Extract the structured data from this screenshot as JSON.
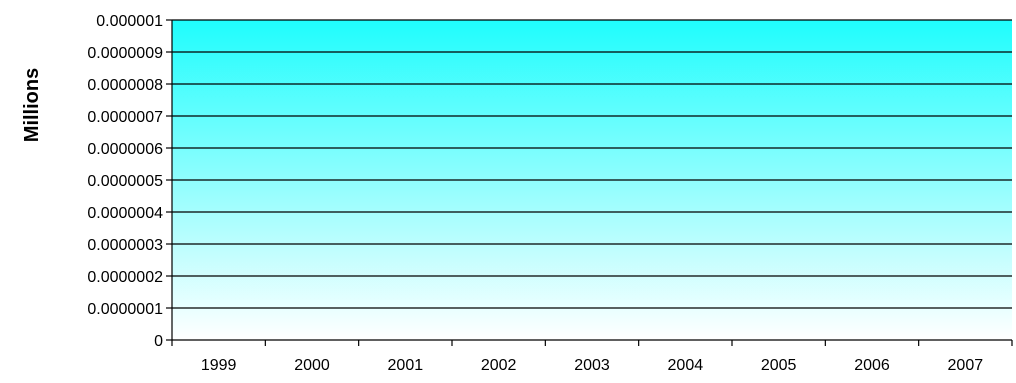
{
  "chart_data": {
    "type": "bar",
    "categories": [
      "1999",
      "2000",
      "2001",
      "2002",
      "2003",
      "2004",
      "2005",
      "2006",
      "2007"
    ],
    "series": [
      {
        "values": [
          0,
          0,
          0,
          0,
          0,
          0,
          0,
          0,
          0
        ]
      }
    ],
    "xlabel": "",
    "ylabel": "Millions",
    "ylim": [
      0,
      1e-06
    ],
    "yticks": [
      "0",
      "0.0000001",
      "0.0000002",
      "0.0000003",
      "0.0000004",
      "0.0000005",
      "0.0000006",
      "0.0000007",
      "0.0000008",
      "0.0000009",
      "0.000001"
    ],
    "grid": true,
    "legend": "none",
    "colors": {
      "plot_gradient_top": "#1ffdfd",
      "plot_gradient_bottom": "#ffffff",
      "gridline": "#000000",
      "axis": "#000000"
    }
  }
}
